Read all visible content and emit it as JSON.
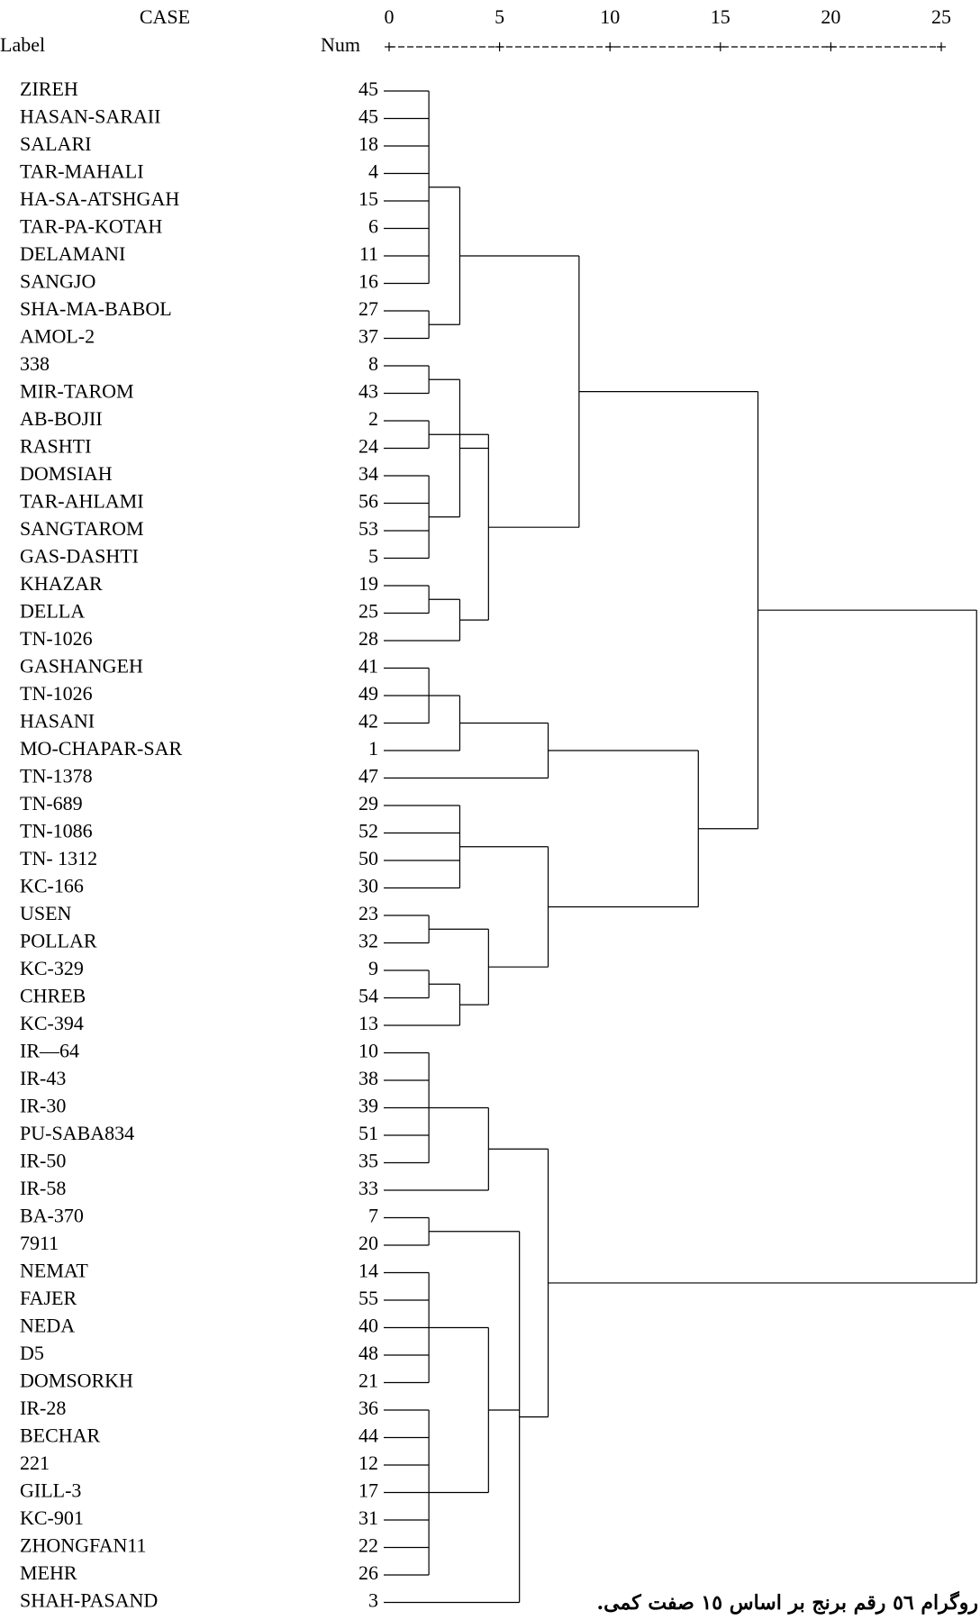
{
  "chart_data": {
    "type": "dendrogram",
    "case_header": "CASE",
    "label_header": "Label",
    "num_header": "Num",
    "caption": "روگرام ٥٦ رقم برنج بر اساس ١٥ صفت کمی.",
    "xlim": [
      0,
      25
    ],
    "xticks": [
      0,
      5,
      10,
      15,
      20,
      25
    ],
    "color": "#000000",
    "cases": [
      {
        "label": "ZIREH",
        "num": 45
      },
      {
        "label": "HASAN-SARAII",
        "num": 45
      },
      {
        "label": "SALARI",
        "num": 18
      },
      {
        "label": "TAR-MAHALI",
        "num": 4
      },
      {
        "label": "HA-SA-ATSHGAH",
        "num": 15
      },
      {
        "label": "TAR-PA-KOTAH",
        "num": 6
      },
      {
        "label": "DELAMANI",
        "num": 11
      },
      {
        "label": "SANGJO",
        "num": 16
      },
      {
        "label": "SHA-MA-BABOL",
        "num": 27
      },
      {
        "label": "AMOL-2",
        "num": 37
      },
      {
        "label": "338",
        "num": 8
      },
      {
        "label": "MIR-TAROM",
        "num": 43
      },
      {
        "label": "AB-BOJII",
        "num": 2
      },
      {
        "label": "RASHTI",
        "num": 24
      },
      {
        "label": "DOMSIAH",
        "num": 34
      },
      {
        "label": "TAR-AHLAMI",
        "num": 56
      },
      {
        "label": "SANGTAROM",
        "num": 53
      },
      {
        "label": "GAS-DASHTI",
        "num": 5
      },
      {
        "label": "KHAZAR",
        "num": 19
      },
      {
        "label": "DELLA",
        "num": 25
      },
      {
        "label": "TN-1026",
        "num": 28
      },
      {
        "label": "GASHANGEH",
        "num": 41
      },
      {
        "label": "TN-1026",
        "num": 49
      },
      {
        "label": "HASANI",
        "num": 42
      },
      {
        "label": "MO-CHAPAR-SAR",
        "num": 1
      },
      {
        "label": "TN-1378",
        "num": 47
      },
      {
        "label": "TN-689",
        "num": 29
      },
      {
        "label": "TN-1086",
        "num": 52
      },
      {
        "label": "TN- 1312",
        "num": 50
      },
      {
        "label": "KC-166",
        "num": 30
      },
      {
        "label": "USEN",
        "num": 23
      },
      {
        "label": "POLLAR",
        "num": 32
      },
      {
        "label": "KC-329",
        "num": 9
      },
      {
        "label": "CHREB",
        "num": 54
      },
      {
        "label": "KC-394",
        "num": 13
      },
      {
        "label": "IR—64",
        "num": 10
      },
      {
        "label": "IR-43",
        "num": 38
      },
      {
        "label": "IR-30",
        "num": 39
      },
      {
        "label": "PU-SABA834",
        "num": 51
      },
      {
        "label": "IR-50",
        "num": 35
      },
      {
        "label": "IR-58",
        "num": 33
      },
      {
        "label": "BA-370",
        "num": 7
      },
      {
        "label": "7911",
        "num": 20
      },
      {
        "label": "NEMAT",
        "num": 14
      },
      {
        "label": "FAJER",
        "num": 55
      },
      {
        "label": "NEDA",
        "num": 40
      },
      {
        "label": "D5",
        "num": 48
      },
      {
        "label": "DOMSORKH",
        "num": 21
      },
      {
        "label": "IR-28",
        "num": 36
      },
      {
        "label": "BECHAR",
        "num": 44
      },
      {
        "label": "221",
        "num": 12
      },
      {
        "label": "GILL-3",
        "num": 17
      },
      {
        "label": "KC-901",
        "num": 31
      },
      {
        "label": "ZHONGFAN11",
        "num": 22
      },
      {
        "label": "MEHR",
        "num": 26
      },
      {
        "label": "SHAH-PASAND",
        "num": 3
      }
    ],
    "nodes": [
      {
        "rows": [
          0,
          1,
          2,
          3,
          4,
          5,
          6,
          7
        ],
        "nodes": [],
        "height": 1.8
      },
      {
        "rows": [
          8,
          9
        ],
        "nodes": [],
        "height": 1.8
      },
      {
        "rows": [],
        "nodes": [
          0,
          1
        ],
        "height": 3.2
      },
      {
        "rows": [
          10,
          11
        ],
        "nodes": [],
        "height": 1.8
      },
      {
        "rows": [
          12,
          13
        ],
        "nodes": [],
        "height": 1.8
      },
      {
        "rows": [
          14,
          15,
          16,
          17
        ],
        "nodes": [],
        "height": 1.8
      },
      {
        "rows": [],
        "nodes": [
          3,
          5
        ],
        "height": 3.2
      },
      {
        "rows": [
          18,
          19
        ],
        "nodes": [],
        "height": 1.8
      },
      {
        "rows": [
          20
        ],
        "nodes": [
          7
        ],
        "height": 3.2
      },
      {
        "rows": [],
        "nodes": [
          4,
          6,
          8
        ],
        "height": 4.5
      },
      {
        "rows": [],
        "nodes": [
          2,
          9
        ],
        "height": 8.6
      },
      {
        "rows": [
          21,
          22,
          23
        ],
        "nodes": [],
        "height": 1.8
      },
      {
        "rows": [
          24
        ],
        "nodes": [
          11
        ],
        "height": 3.2
      },
      {
        "rows": [
          25
        ],
        "nodes": [
          12
        ],
        "height": 7.2
      },
      {
        "rows": [
          26,
          27,
          28,
          29
        ],
        "nodes": [],
        "height": 3.2
      },
      {
        "rows": [
          30,
          31
        ],
        "nodes": [],
        "height": 1.8
      },
      {
        "rows": [
          32,
          33
        ],
        "nodes": [],
        "height": 1.8
      },
      {
        "rows": [
          34
        ],
        "nodes": [
          16
        ],
        "height": 3.2
      },
      {
        "rows": [],
        "nodes": [
          15,
          17
        ],
        "height": 4.5
      },
      {
        "rows": [],
        "nodes": [
          14,
          18
        ],
        "height": 7.2
      },
      {
        "rows": [],
        "nodes": [
          13,
          19
        ],
        "height": 14.0
      },
      {
        "rows": [],
        "nodes": [
          10,
          20
        ],
        "height": 16.7
      },
      {
        "rows": [
          35,
          36,
          37,
          38,
          39
        ],
        "nodes": [],
        "height": 1.8
      },
      {
        "rows": [
          40
        ],
        "nodes": [
          22
        ],
        "height": 4.5
      },
      {
        "rows": [
          41,
          42
        ],
        "nodes": [],
        "height": 1.8
      },
      {
        "rows": [
          43,
          44,
          45,
          46,
          47
        ],
        "nodes": [],
        "height": 1.8
      },
      {
        "rows": [
          48,
          49,
          50,
          51,
          52,
          53,
          54
        ],
        "nodes": [],
        "height": 1.8
      },
      {
        "rows": [],
        "nodes": [
          25,
          26
        ],
        "height": 4.5
      },
      {
        "rows": [
          55
        ],
        "nodes": [
          24,
          27
        ],
        "height": 5.9
      },
      {
        "rows": [],
        "nodes": [
          23,
          28
        ],
        "height": 7.2
      },
      {
        "rows": [],
        "nodes": [
          21,
          29
        ],
        "height": 26.6
      }
    ]
  }
}
